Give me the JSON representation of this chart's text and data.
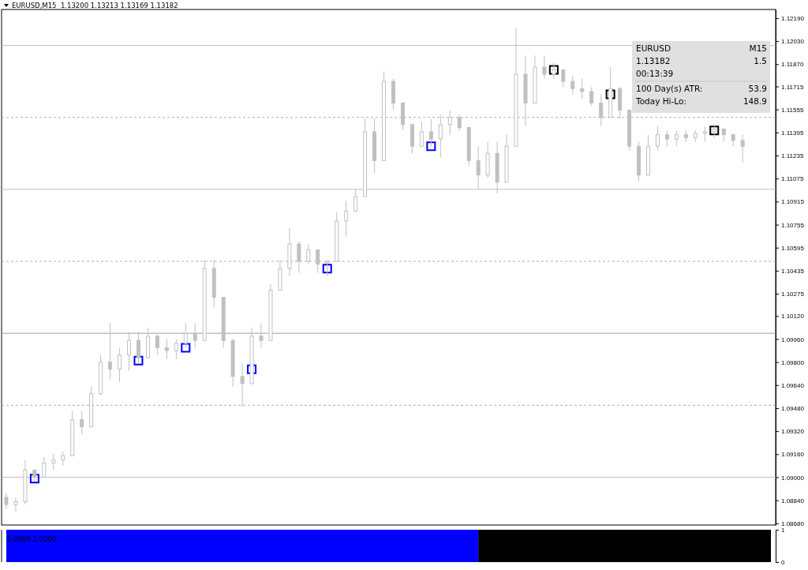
{
  "chart_data": [
    {
      "type": "candlestick",
      "title": "EURUSD,M15  1.13200 1.13213 1.13169 1.13182",
      "categories": [
        null,
        null,
        null,
        null,
        null,
        null,
        null,
        null,
        null,
        null,
        null,
        null,
        null,
        null,
        null,
        null,
        null,
        null,
        null,
        null,
        null,
        null,
        null,
        null,
        null,
        null,
        null,
        null,
        null,
        null,
        null,
        null,
        null,
        null,
        null,
        null,
        null,
        null,
        null,
        null,
        null,
        null,
        null,
        null,
        null,
        null,
        null,
        null,
        null,
        null,
        null,
        null,
        null,
        null,
        null,
        null,
        null,
        null,
        null,
        null,
        null,
        null,
        null,
        null,
        null,
        null,
        null,
        null,
        null,
        null,
        null,
        null,
        null,
        null,
        null,
        null,
        null,
        null,
        null,
        null,
        null,
        null
      ],
      "series": [
        {
          "type": "candlestick",
          "color": "#c0c0c0",
          "ohlc": [
            [
              1.0886,
              1.0889,
              1.0878,
              1.0881
            ],
            [
              1.0881,
              1.0886,
              1.0876,
              1.0883
            ],
            [
              1.0883,
              1.0912,
              1.0881,
              1.0905
            ],
            [
              1.0905,
              1.0905,
              1.0897,
              1.09
            ],
            [
              1.09,
              1.0914,
              1.09,
              1.091
            ],
            [
              1.091,
              1.0916,
              1.0905,
              1.0912
            ],
            [
              1.0912,
              1.0918,
              1.0908,
              1.0915
            ],
            [
              1.0915,
              1.0946,
              1.0915,
              1.094
            ],
            [
              1.094,
              1.0946,
              1.093,
              1.0935
            ],
            [
              1.0935,
              1.0963,
              1.0935,
              1.0958
            ],
            [
              1.0958,
              1.0985,
              1.0957,
              1.098
            ],
            [
              1.098,
              1.1007,
              1.0968,
              1.0975
            ],
            [
              1.0975,
              1.099,
              1.0966,
              1.0985
            ],
            [
              1.0985,
              1.1001,
              1.0974,
              1.0995
            ],
            [
              1.0995,
              1.1001,
              1.0979,
              1.0983
            ],
            [
              1.0983,
              1.1004,
              1.0983,
              1.0998
            ],
            [
              1.0998,
              1.0999,
              1.0985,
              1.099
            ],
            [
              1.099,
              1.0996,
              1.0982,
              1.0988
            ],
            [
              1.0988,
              1.0996,
              1.0982,
              1.0993
            ],
            [
              1.0993,
              1.1007,
              1.099,
              1.1
            ],
            [
              1.1,
              1.1007,
              1.099,
              1.0995
            ],
            [
              1.0995,
              1.1051,
              1.0995,
              1.1045
            ],
            [
              1.1045,
              1.1051,
              1.1018,
              1.1025
            ],
            [
              1.1025,
              1.1025,
              1.099,
              1.0995
            ],
            [
              1.0995,
              1.0996,
              1.0963,
              1.097
            ],
            [
              1.097,
              1.0979,
              1.0949,
              1.0965
            ],
            [
              1.0965,
              1.1004,
              1.0965,
              1.0998
            ],
            [
              1.0998,
              1.1007,
              1.099,
              1.0995
            ],
            [
              1.0995,
              1.1034,
              1.0995,
              1.103
            ],
            [
              1.103,
              1.1051,
              1.103,
              1.1045
            ],
            [
              1.1045,
              1.1073,
              1.104,
              1.1062
            ],
            [
              1.1062,
              1.1064,
              1.1042,
              1.105
            ],
            [
              1.105,
              1.1062,
              1.1048,
              1.1058
            ],
            [
              1.1058,
              1.1058,
              1.1042,
              1.1048
            ],
            [
              1.1049,
              1.1051,
              1.104,
              1.105
            ],
            [
              1.105,
              1.1084,
              1.105,
              1.1078
            ],
            [
              1.1078,
              1.1092,
              1.1067,
              1.1085
            ],
            [
              1.1085,
              1.11,
              1.1084,
              1.1095
            ],
            [
              1.1095,
              1.1149,
              1.1095,
              1.114
            ],
            [
              1.114,
              1.1149,
              1.1111,
              1.112
            ],
            [
              1.112,
              1.1182,
              1.112,
              1.1175
            ],
            [
              1.1175,
              1.1177,
              1.1155,
              1.116
            ],
            [
              1.116,
              1.116,
              1.1141,
              1.1145
            ],
            [
              1.1145,
              1.1145,
              1.1125,
              1.113
            ],
            [
              1.113,
              1.1147,
              1.113,
              1.114
            ],
            [
              1.114,
              1.1149,
              1.113,
              1.1135
            ],
            [
              1.1135,
              1.1152,
              1.1122,
              1.1145
            ],
            [
              1.1145,
              1.1155,
              1.1138,
              1.115
            ],
            [
              1.115,
              1.1152,
              1.1141,
              1.1143
            ],
            [
              1.1143,
              1.1143,
              1.1116,
              1.112
            ],
            [
              1.112,
              1.113,
              1.11,
              1.111
            ],
            [
              1.111,
              1.1133,
              1.1108,
              1.1125
            ],
            [
              1.1125,
              1.1133,
              1.1097,
              1.1105
            ],
            [
              1.1105,
              1.1138,
              1.1105,
              1.113
            ],
            [
              1.113,
              1.1212,
              1.113,
              1.118
            ],
            [
              1.118,
              1.1193,
              1.1144,
              1.116
            ],
            [
              1.116,
              1.1193,
              1.116,
              1.1185
            ],
            [
              1.1185,
              1.1193,
              1.1177,
              1.118
            ],
            [
              1.118,
              1.1188,
              1.1177,
              1.1183
            ],
            [
              1.1183,
              1.1183,
              1.1171,
              1.1175
            ],
            [
              1.1175,
              1.1179,
              1.1166,
              1.117
            ],
            [
              1.117,
              1.1177,
              1.1163,
              1.1168
            ],
            [
              1.1168,
              1.1171,
              1.1158,
              1.116
            ],
            [
              1.116,
              1.1166,
              1.1144,
              1.115
            ],
            [
              1.115,
              1.1185,
              1.115,
              1.117
            ],
            [
              1.117,
              1.1171,
              1.1149,
              1.1155
            ],
            [
              1.1155,
              1.1155,
              1.1127,
              1.113
            ],
            [
              1.113,
              1.1133,
              1.1106,
              1.111
            ],
            [
              1.111,
              1.1138,
              1.111,
              1.113
            ],
            [
              1.113,
              1.1144,
              1.1127,
              1.1138
            ],
            [
              1.1138,
              1.1141,
              1.113,
              1.1135
            ],
            [
              1.1135,
              1.1141,
              1.113,
              1.1138
            ],
            [
              1.1138,
              1.1141,
              1.1133,
              1.1136
            ],
            [
              1.1136,
              1.1141,
              1.1133,
              1.1139
            ],
            [
              1.1139,
              1.1144,
              1.1133,
              1.114
            ],
            [
              1.114,
              1.1144,
              1.1136,
              1.1142
            ],
            [
              1.1142,
              1.1142,
              1.1133,
              1.1138
            ],
            [
              1.1138,
              1.1138,
              1.113,
              1.1134
            ],
            [
              1.1134,
              1.1138,
              1.1119,
              1.113
            ],
            null,
            null,
            null
          ]
        },
        {
          "type": "scatter",
          "color": "#0000ff",
          "values": [
            null,
            null,
            null,
            1.0899,
            null,
            null,
            null,
            null,
            null,
            null,
            null,
            null,
            null,
            null,
            1.0981,
            null,
            null,
            null,
            null,
            1.099,
            null,
            null,
            null,
            null,
            null,
            null,
            1.0975,
            null,
            null,
            null,
            null,
            null,
            null,
            null,
            1.1045,
            null,
            null,
            null,
            null,
            null,
            null,
            null,
            null,
            null,
            null,
            1.113,
            null,
            null,
            null,
            null,
            null,
            null,
            null,
            null,
            null,
            null,
            null,
            null,
            null,
            null,
            null,
            null,
            null,
            null,
            null,
            null,
            null,
            null,
            null,
            null,
            null,
            null,
            null,
            null,
            null,
            null,
            null,
            null,
            null,
            null,
            null,
            null
          ]
        },
        {
          "type": "scatter",
          "color": "#000000",
          "values": [
            null,
            null,
            null,
            null,
            null,
            null,
            null,
            null,
            null,
            null,
            null,
            null,
            null,
            null,
            null,
            null,
            null,
            null,
            null,
            null,
            null,
            null,
            null,
            null,
            null,
            null,
            null,
            null,
            null,
            null,
            null,
            null,
            null,
            null,
            null,
            null,
            null,
            null,
            null,
            null,
            null,
            null,
            null,
            null,
            null,
            null,
            null,
            null,
            null,
            null,
            null,
            null,
            null,
            null,
            null,
            null,
            null,
            null,
            1.1183,
            null,
            null,
            null,
            null,
            null,
            1.1166,
            null,
            null,
            null,
            null,
            null,
            null,
            null,
            null,
            null,
            null,
            1.1141,
            null,
            null,
            null,
            null,
            null,
            null
          ]
        }
      ],
      "marker": "square",
      "ylim": [
        1.08668,
        1.1225
      ],
      "yticks": [
        {
          "value": 1.1219,
          "label": "1.12190"
        },
        {
          "value": 1.1203,
          "label": "1.12030"
        },
        {
          "value": 1.1187,
          "label": "1.11870"
        },
        {
          "value": 1.11715,
          "label": "1.11715"
        },
        {
          "value": 1.11555,
          "label": "1.11555"
        },
        {
          "value": 1.11395,
          "label": "1.11395"
        },
        {
          "value": 1.11235,
          "label": "1.11235"
        },
        {
          "value": 1.11075,
          "label": "1.11075"
        },
        {
          "value": 1.10915,
          "label": "1.10915"
        },
        {
          "value": 1.10755,
          "label": "1.10755"
        },
        {
          "value": 1.10595,
          "label": "1.10595"
        },
        {
          "value": 1.10435,
          "label": "1.10435"
        },
        {
          "value": 1.10275,
          "label": "1.10275"
        },
        {
          "value": 1.1012,
          "label": "1.10120"
        },
        {
          "value": 1.0996,
          "label": "1.09960"
        },
        {
          "value": 1.098,
          "label": "1.09800"
        },
        {
          "value": 1.0964,
          "label": "1.09640"
        },
        {
          "value": 1.0948,
          "label": "1.09480"
        },
        {
          "value": 1.0932,
          "label": "1.09320"
        },
        {
          "value": 1.0916,
          "label": "1.09160"
        },
        {
          "value": 1.09,
          "label": "1.09000"
        },
        {
          "value": 1.0884,
          "label": "1.08840"
        },
        {
          "value": 1.0868,
          "label": "1.08680"
        }
      ],
      "ref_lines": [
        {
          "axis": "y",
          "value": 1.12,
          "color": "#c0c0c0",
          "line_style": "solid"
        },
        {
          "axis": "y",
          "value": 1.115,
          "color": "#b0b0b0",
          "line_style": "dashed"
        },
        {
          "axis": "y",
          "value": 1.11,
          "color": "#c0c0c0",
          "line_style": "solid"
        },
        {
          "axis": "y",
          "value": 1.105,
          "color": "#b0b0b0",
          "line_style": "dashed"
        },
        {
          "axis": "y",
          "value": 1.1,
          "color": "#a0a0a0",
          "line_style": "solid"
        },
        {
          "axis": "y",
          "value": 1.095,
          "color": "#b0b0b0",
          "line_style": "dashed"
        },
        {
          "axis": "y",
          "value": 1.09,
          "color": "#c0c0c0",
          "line_style": "solid"
        }
      ],
      "annotations": [
        "EURUSD",
        "M15",
        "1.13182",
        "1.5",
        "00:13:39",
        "100 Day(s) ATR:",
        "53.9",
        "Today Hi-Lo:",
        "148.9"
      ],
      "tick_labels": "y",
      "grid": false
    },
    {
      "type": "area",
      "categories": [
        null,
        null,
        null,
        null,
        null,
        null,
        null,
        null,
        null,
        null,
        null,
        null,
        null,
        null,
        null,
        null,
        null,
        null,
        null,
        null,
        null,
        null,
        null,
        null,
        null,
        null,
        null,
        null,
        null,
        null,
        null,
        null,
        null,
        null,
        null,
        null,
        null,
        null,
        null,
        null,
        null,
        null,
        null,
        null,
        null,
        null,
        null,
        null,
        null,
        null,
        null,
        null,
        null,
        null,
        null,
        null,
        null,
        null,
        null,
        null,
        null,
        null,
        null,
        null,
        null,
        null,
        null,
        null,
        null,
        null,
        null,
        null,
        null,
        null,
        null,
        null,
        null,
        null,
        null,
        null,
        null,
        null
      ],
      "series": [
        {
          "color": "#0000ff",
          "values": [
            1,
            1,
            1,
            1,
            1,
            1,
            1,
            1,
            1,
            1,
            1,
            1,
            1,
            1,
            1,
            1,
            1,
            1,
            1,
            1,
            1,
            1,
            1,
            1,
            1,
            1,
            1,
            1,
            1,
            1,
            1,
            1,
            1,
            1,
            1,
            1,
            1,
            1,
            1,
            1,
            1,
            1,
            1,
            1,
            1,
            1,
            1,
            1,
            1,
            1,
            1,
            null,
            null,
            null,
            null,
            null,
            null,
            null,
            null,
            null,
            null,
            null,
            null,
            null,
            null,
            null,
            null,
            null,
            null,
            null,
            null,
            null,
            null,
            null,
            null,
            null,
            null,
            null,
            null,
            null,
            null,
            null
          ]
        },
        {
          "color": "#000000",
          "values": [
            null,
            null,
            null,
            null,
            null,
            null,
            null,
            null,
            null,
            null,
            null,
            null,
            null,
            null,
            null,
            null,
            null,
            null,
            null,
            null,
            null,
            null,
            null,
            null,
            null,
            null,
            null,
            null,
            null,
            null,
            null,
            null,
            null,
            null,
            null,
            null,
            null,
            null,
            null,
            null,
            null,
            null,
            null,
            null,
            null,
            null,
            null,
            null,
            null,
            null,
            1,
            1,
            1,
            1,
            1,
            1,
            1,
            1,
            1,
            1,
            1,
            1,
            1,
            1,
            1,
            1,
            1,
            1,
            1,
            1,
            1,
            1,
            1,
            1,
            1,
            1,
            1,
            1,
            1,
            1,
            1,
            1
          ]
        }
      ],
      "ylim": [
        0,
        1
      ],
      "yticks": [
        0,
        1
      ],
      "annotations": [
        "0.0000 2.0000"
      ],
      "tick_labels": "y",
      "grid": false
    }
  ]
}
